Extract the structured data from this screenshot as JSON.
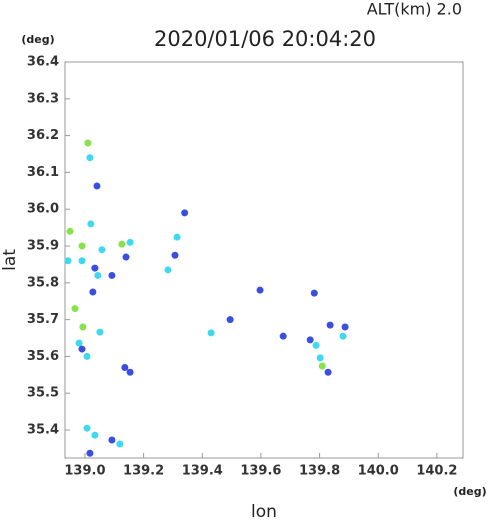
{
  "chart_data": {
    "type": "scatter",
    "title": "2020/01/06 20:04:20",
    "subtitle": "ALT(km)  2.0",
    "x_label": "lon",
    "y_label": "lat",
    "x_unit": "(deg)",
    "y_unit": "(deg)",
    "xlim": [
      138.932,
      140.289
    ],
    "ylim": [
      35.324,
      36.4
    ],
    "xticks": [
      {
        "value": 139,
        "label": "139.0"
      },
      139.2,
      139.4,
      139.6,
      139.8,
      {
        "value": 140,
        "label": "140.0"
      },
      140.2
    ],
    "yticks": [
      {
        "value": 35.4,
        "label": "35.4"
      },
      35.5,
      35.6,
      35.7,
      35.8,
      35.9,
      {
        "value": 36,
        "label": "36.0"
      },
      36.1,
      36.2,
      36.3,
      36.4
    ],
    "grid": false,
    "x": [
      139.01,
      139.017,
      139.041,
      139.02,
      138.949,
      138.99,
      138.99,
      138.942,
      139.034,
      139.027,
      139.044,
      138.966,
      138.993,
      139.051,
      138.98,
      138.99,
      139.007,
      139.058,
      139.154,
      139.126,
      139.14,
      139.092,
      139.136,
      139.154,
      139.007,
      139.034,
      139.092,
      139.119,
      139.017,
      139.314,
      139.307,
      139.34,
      139.43,
      139.495,
      139.597,
      139.676,
      139.768,
      139.788,
      139.802,
      139.809,
      139.836,
      139.887,
      139.88,
      139.829,
      139.782,
      139.283
    ],
    "values": [
      36.18,
      36.14,
      36.063,
      35.96,
      35.94,
      35.9,
      35.86,
      35.86,
      35.84,
      35.775,
      35.82,
      35.73,
      35.68,
      35.666,
      35.636,
      35.62,
      35.6,
      35.89,
      35.91,
      35.905,
      35.87,
      35.82,
      35.57,
      35.557,
      35.405,
      35.386,
      35.373,
      35.362,
      35.337,
      35.924,
      35.875,
      35.99,
      35.664,
      35.7,
      35.78,
      35.655,
      35.645,
      35.63,
      35.596,
      35.574,
      35.685,
      35.68,
      35.655,
      35.557,
      35.772,
      35.835
    ],
    "colors": [
      "#86e24a",
      "#3ed8f0",
      "#3a4fe0",
      "#3ed8f0",
      "#86e24a",
      "#86e24a",
      "#3ed8f0",
      "#3ed8f0",
      "#3a4fe0",
      "#3a4fe0",
      "#3ed8f0",
      "#86e24a",
      "#86e24a",
      "#3ed8f0",
      "#3ed8f0",
      "#3a4fe0",
      "#3ed8f0",
      "#3ed8f0",
      "#3ed8f0",
      "#86e24a",
      "#3a4fe0",
      "#3a4fe0",
      "#3a4fe0",
      "#3a4fe0",
      "#3ed8f0",
      "#3ed8f0",
      "#3a4fe0",
      "#3ed8f0",
      "#3a4fe0",
      "#3ed8f0",
      "#3a4fe0",
      "#3a4fe0",
      "#3ed8f0",
      "#3a4fe0",
      "#3a4fe0",
      "#3a4fe0",
      "#3a4fe0",
      "#3ed8f0",
      "#3ed8f0",
      "#86e24a",
      "#3a4fe0",
      "#3a4fe0",
      "#3ed8f0",
      "#3a4fe0",
      "#3a4fe0",
      "#3ed8f0"
    ]
  }
}
